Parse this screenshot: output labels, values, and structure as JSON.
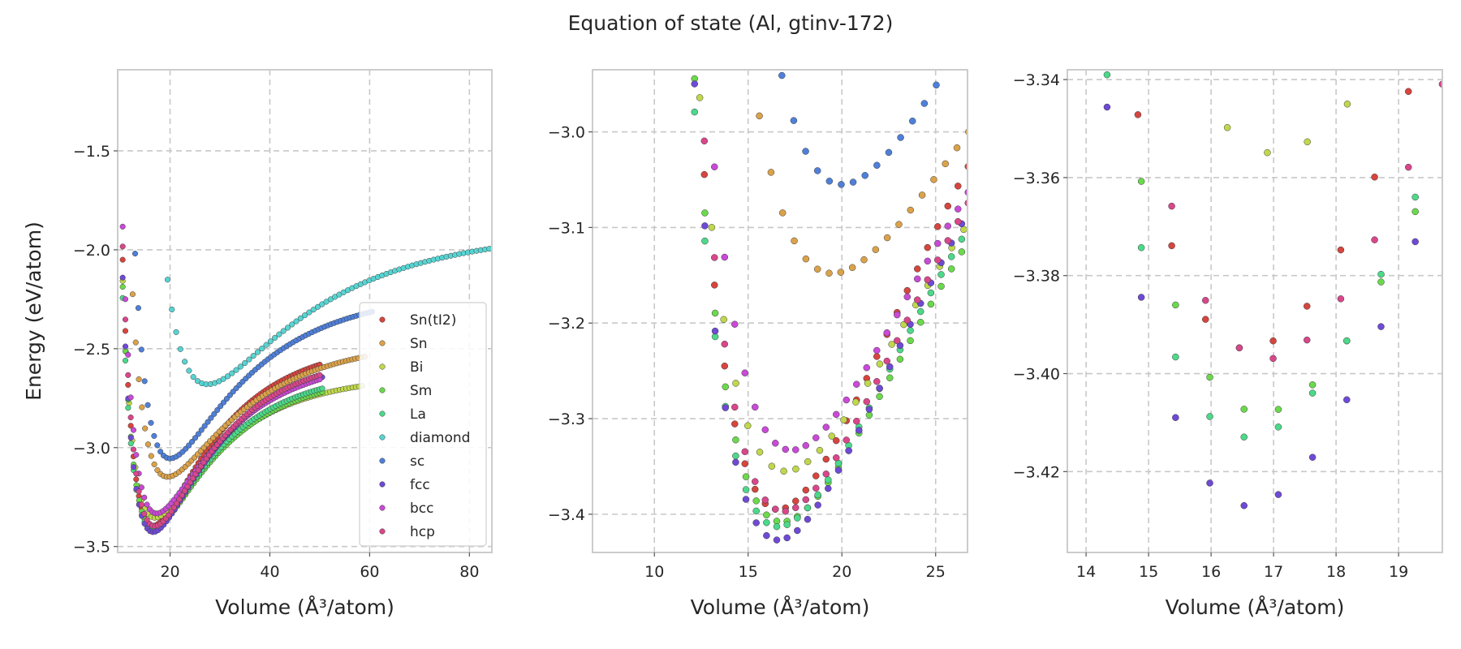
{
  "suptitle": "Equation of state (Al, gtinv-172)",
  "series_styles": [
    {
      "name": "Sn(tI2)",
      "color": "#d6453e"
    },
    {
      "name": "Sn",
      "color": "#dba24a"
    },
    {
      "name": "Bi",
      "color": "#bfd84a"
    },
    {
      "name": "Sm",
      "color": "#6bd94c"
    },
    {
      "name": "La",
      "color": "#4cd98a"
    },
    {
      "name": "diamond",
      "color": "#56d4d2"
    },
    {
      "name": "sc",
      "color": "#4f80d9"
    },
    {
      "name": "fcc",
      "color": "#6e4ad6"
    },
    {
      "name": "bcc",
      "color": "#c94ad6"
    },
    {
      "name": "hcp",
      "color": "#d9478a"
    }
  ],
  "chart_data": [
    {
      "type": "scatter",
      "xlabel": "Volume (Å³/atom)",
      "ylabel": "Energy (eV/atom)",
      "xlim": [
        9.5,
        84.5
      ],
      "ylim": [
        -3.53,
        -1.09
      ],
      "xticks": [
        20,
        40,
        60,
        80
      ],
      "yticks": [
        -3.5,
        -3.0,
        -2.5,
        -2.0,
        -1.5
      ],
      "ytick_labels": [
        "−3.5",
        "−3.0",
        "−2.5",
        "−2.0",
        "−1.5"
      ],
      "grid": true,
      "legend": "bottom-right",
      "series": [
        {
          "name": "Sn(tI2)",
          "V0": 16.6,
          "E0": -3.395,
          "B": 0.0115,
          "vmin": 10.5,
          "vmax": 50.0,
          "n": 74
        },
        {
          "name": "Sn",
          "V0": 19.5,
          "E0": -3.148,
          "B": 0.0062,
          "vmin": 12.5,
          "vmax": 59.0,
          "n": 76
        },
        {
          "name": "Bi",
          "V0": 17.0,
          "E0": -3.355,
          "B": 0.0085,
          "vmin": 10.5,
          "vmax": 58.5,
          "n": 76
        },
        {
          "name": "Sm",
          "V0": 16.8,
          "E0": -3.408,
          "B": 0.0095,
          "vmin": 10.5,
          "vmax": 50.5,
          "n": 74
        },
        {
          "name": "La",
          "V0": 16.6,
          "E0": -3.413,
          "B": 0.01,
          "vmin": 10.5,
          "vmax": 50.5,
          "n": 74
        },
        {
          "name": "diamond",
          "V0": 27.5,
          "E0": -2.68,
          "B": 0.0035,
          "vmin": 19.5,
          "vmax": 84.0,
          "n": 76
        },
        {
          "name": "sc",
          "V0": 20.0,
          "E0": -3.055,
          "B": 0.0072,
          "vmin": 13.0,
          "vmax": 60.5,
          "n": 76
        },
        {
          "name": "fcc",
          "V0": 16.6,
          "E0": -3.427,
          "B": 0.011,
          "vmin": 10.5,
          "vmax": 50.5,
          "n": 74
        },
        {
          "name": "bcc",
          "V0": 17.3,
          "E0": -3.333,
          "B": 0.009,
          "vmin": 10.5,
          "vmax": 50.0,
          "n": 74
        },
        {
          "name": "hcp",
          "V0": 16.9,
          "E0": -3.397,
          "B": 0.0105,
          "vmin": 10.5,
          "vmax": 50.0,
          "n": 74
        }
      ]
    },
    {
      "type": "scatter",
      "xlabel": "Volume (Å³/atom)",
      "ylabel": "",
      "xlim": [
        6.7,
        26.7
      ],
      "ylim": [
        -3.44,
        -2.935
      ],
      "xticks": [
        10,
        15,
        20,
        25
      ],
      "yticks": [
        -3.4,
        -3.3,
        -3.2,
        -3.1,
        -3.0
      ],
      "ytick_labels": [
        "−3.4",
        "−3.3",
        "−3.2",
        "−3.1",
        "−3.0"
      ],
      "grid": true
    },
    {
      "type": "scatter",
      "xlabel": "Volume (Å³/atom)",
      "ylabel": "",
      "xlim": [
        13.7,
        19.7
      ],
      "ylim": [
        -3.4365,
        -3.338
      ],
      "xticks": [
        14,
        15,
        16,
        17,
        18,
        19
      ],
      "yticks": [
        -3.42,
        -3.4,
        -3.38,
        -3.36,
        -3.34
      ],
      "ytick_labels": [
        "−3.42",
        "−3.40",
        "−3.38",
        "−3.36",
        "−3.34"
      ],
      "grid": true
    }
  ]
}
